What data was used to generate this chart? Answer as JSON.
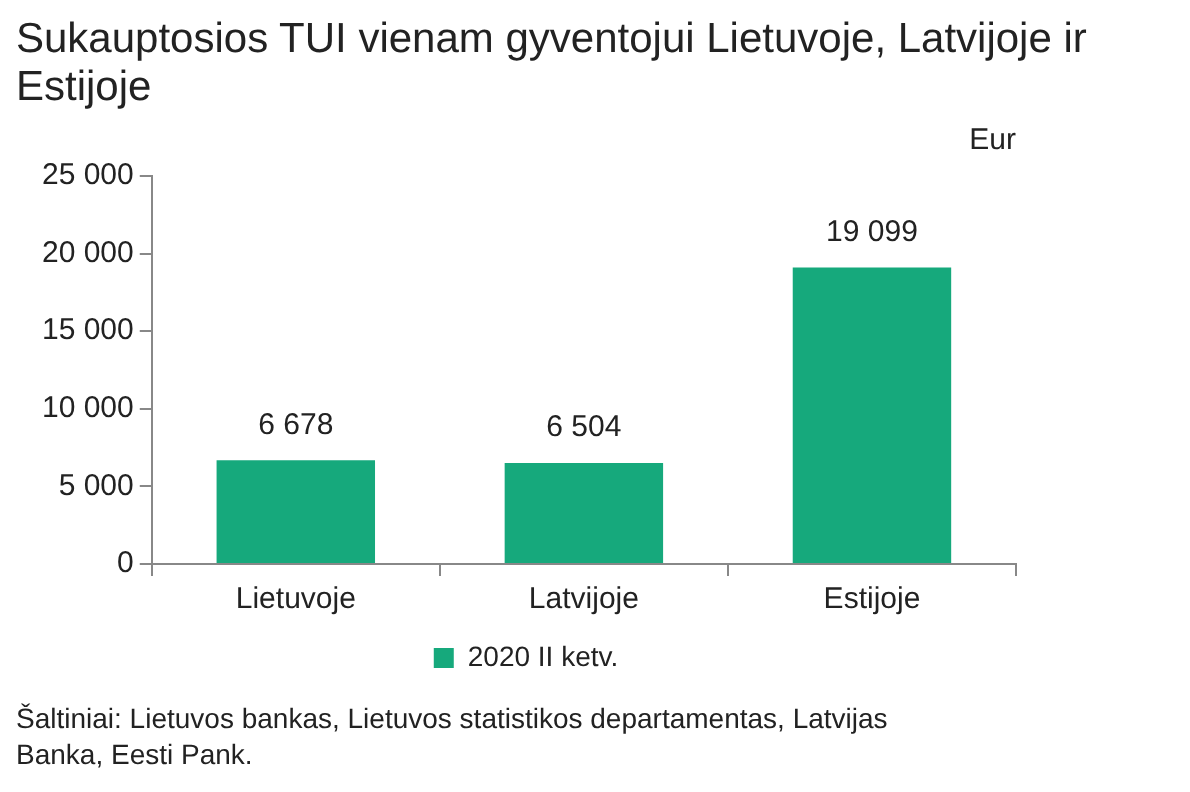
{
  "chart_data": {
    "type": "bar",
    "title": "Sukauptosios TUI vienam gyventojui Lietuvoje, Latvijoje ir Estijoje",
    "ylabel": "Eur",
    "categories": [
      "Lietuvoje",
      "Latvijoje",
      "Estijoje"
    ],
    "series": [
      {
        "name": "2020 II ketv.",
        "color": "#16a97c",
        "values": [
          6678,
          6504,
          19099
        ],
        "value_labels": [
          "6 678",
          "6 504",
          "19 099"
        ]
      }
    ],
    "ylim": [
      0,
      25000
    ],
    "yticks": [
      {
        "value": 0,
        "label": "0"
      },
      {
        "value": 5000,
        "label": "5 000"
      },
      {
        "value": 10000,
        "label": "10 000"
      },
      {
        "value": 15000,
        "label": "15 000"
      },
      {
        "value": 20000,
        "label": "20 000"
      },
      {
        "value": 25000,
        "label": "25 000"
      }
    ],
    "grid": false,
    "legend": "bottom",
    "annotations": [
      "Šaltiniai: Lietuvos bankas, Lietuvos statistikos departamentas, Latvijas Banka, Eesti Pank."
    ]
  }
}
